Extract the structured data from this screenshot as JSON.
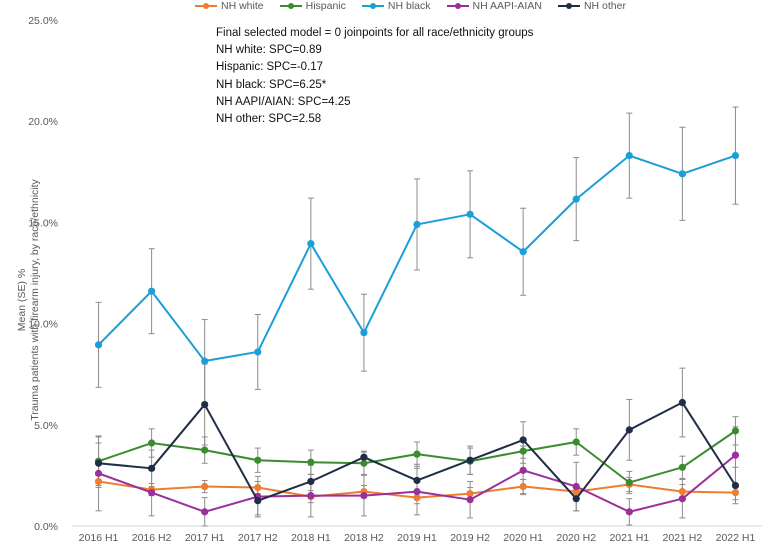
{
  "chart_data": {
    "type": "line",
    "title": "",
    "xlabel": "",
    "ylabel_line1": "Mean (SE) %",
    "ylabel_line2": "Trauma patients with firearm injury, by race/ethnicity",
    "ylim": [
      0,
      25
    ],
    "y_ticks": [
      0,
      5,
      10,
      15,
      20,
      25
    ],
    "y_tick_labels": [
      "0.0%",
      "5.0%",
      "10.0%",
      "15.0%",
      "20.0%",
      "25.0%"
    ],
    "grid": false,
    "legend_position": "top",
    "categories": [
      "2016 H1",
      "2016 H2",
      "2017 H1",
      "2017 H2",
      "2018 H1",
      "2018 H2",
      "2019 H1",
      "2019 H2",
      "2020 H1",
      "2020 H2",
      "2021 H1",
      "2021 H2",
      "2022 H1"
    ],
    "series": [
      {
        "name": "NH white",
        "color": "#ED7D31",
        "values": [
          2.2,
          1.8,
          1.95,
          1.9,
          1.45,
          1.7,
          1.4,
          1.6,
          1.95,
          1.7,
          2.05,
          1.7,
          1.65
        ],
        "se": [
          0.3,
          0.3,
          0.3,
          0.3,
          0.3,
          0.3,
          0.3,
          0.3,
          0.35,
          0.35,
          0.35,
          0.35,
          0.35
        ]
      },
      {
        "name": "Hispanic",
        "color": "#3A8C2E",
        "values": [
          3.2,
          4.1,
          3.75,
          3.25,
          3.15,
          3.1,
          3.55,
          3.2,
          3.7,
          4.15,
          2.15,
          2.9,
          4.7
        ],
        "se": [
          1.2,
          0.7,
          0.65,
          0.6,
          0.6,
          0.55,
          0.6,
          0.65,
          0.6,
          0.65,
          0.55,
          0.55,
          0.7
        ]
      },
      {
        "name": "NH black",
        "color": "#1C9ED8",
        "values": [
          8.95,
          11.6,
          8.15,
          8.6,
          13.95,
          9.55,
          14.9,
          15.4,
          13.55,
          16.15,
          18.3,
          17.4,
          18.3
        ],
        "se": [
          2.1,
          2.1,
          2.05,
          1.85,
          2.25,
          1.9,
          2.25,
          2.15,
          2.15,
          2.05,
          2.1,
          2.3,
          2.4
        ]
      },
      {
        "name": "NH AAPI-AIAN",
        "color": "#9B2F9B",
        "values": [
          2.6,
          1.65,
          0.7,
          1.45,
          1.5,
          1.5,
          1.7,
          1.3,
          2.75,
          1.95,
          0.7,
          1.35,
          3.5
        ],
        "se": [
          1.85,
          1.15,
          0.7,
          1.0,
          1.05,
          1.0,
          1.15,
          0.9,
          1.2,
          1.2,
          0.65,
          0.95,
          1.4
        ]
      },
      {
        "name": "NH other",
        "color": "#1F2D46",
        "values": [
          3.1,
          2.85,
          6.0,
          1.25,
          2.2,
          3.4,
          2.25,
          3.25,
          4.25,
          1.35,
          4.75,
          6.1,
          2.0
        ],
        "se": [
          1.0,
          0.9,
          2.0,
          0.7,
          0.8,
          0.3,
          0.8,
          0.7,
          0.9,
          0.6,
          1.5,
          1.7,
          0.9
        ]
      }
    ],
    "annotations": [
      "Final selected model = 0 joinpoints for all race/ethnicity groups",
      "NH white: SPC=0.89",
      "Hispanic: SPC=-0.17",
      "NH black: SPC=6.25*",
      "NH AAPI/AIAN: SPC=4.25",
      "NH other: SPC=2.58"
    ]
  }
}
